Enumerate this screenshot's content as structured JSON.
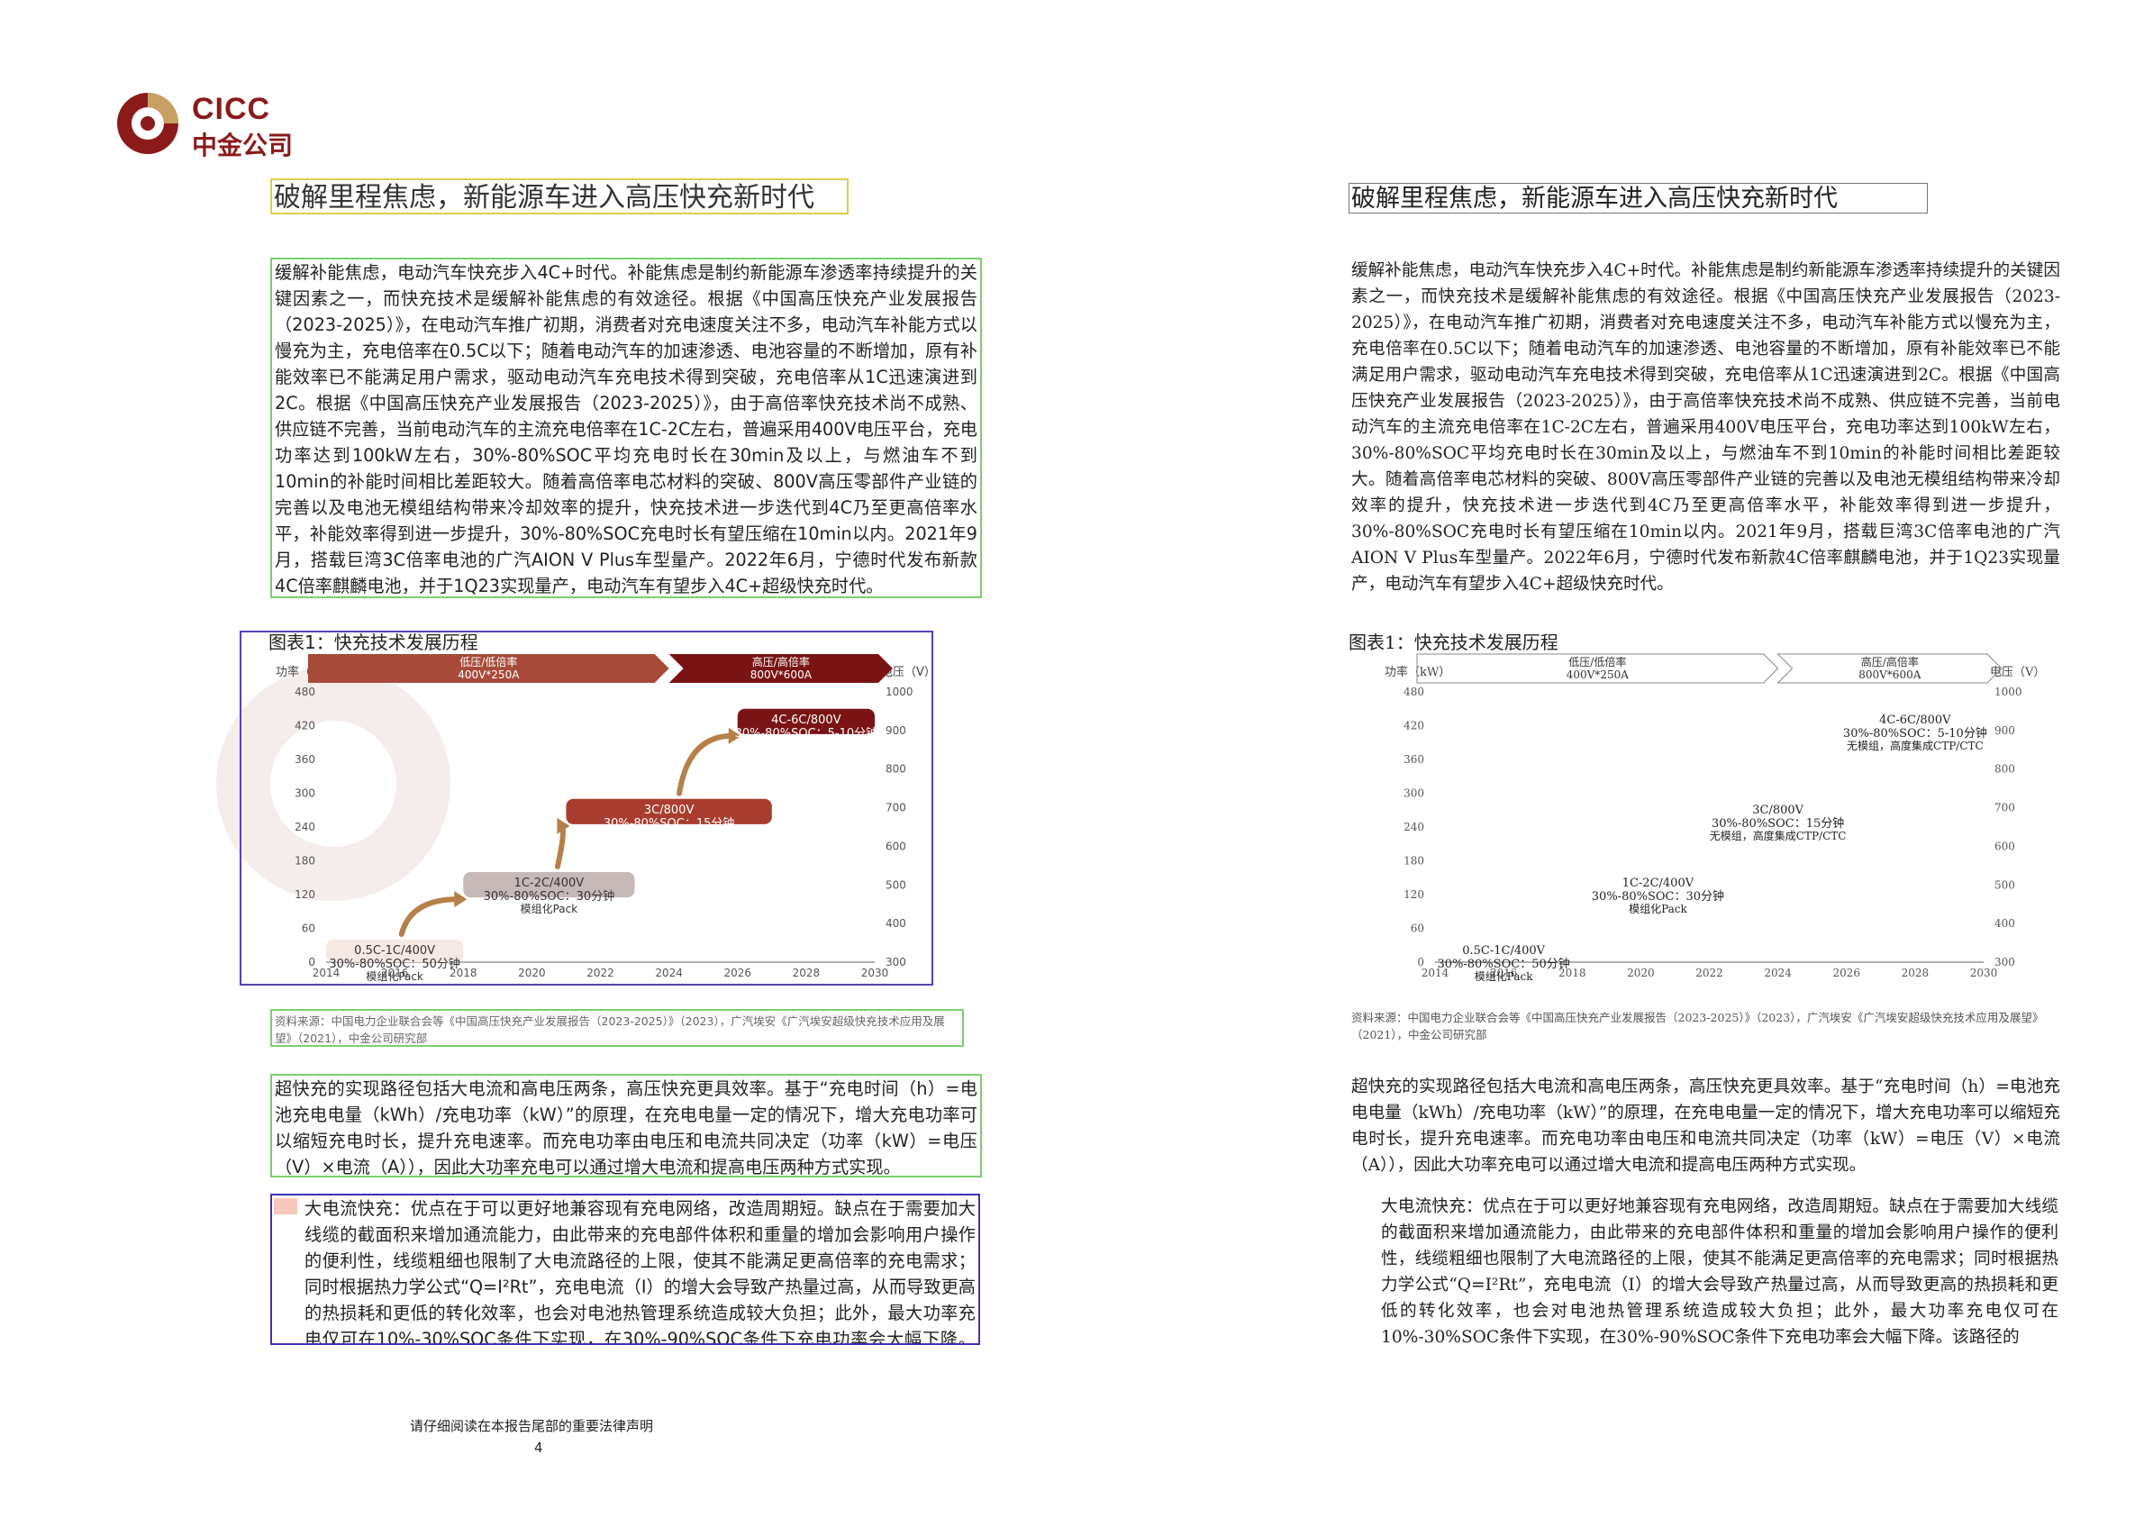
{
  "brand": {
    "name_en": "CICC",
    "name_cn": "中金公司",
    "color": "#8b1a1a"
  },
  "title": "破解里程焦虑，新能源车进入高压快充新时代",
  "paragraph1": "缓解补能焦虑，电动汽车快充步入4C+时代。补能焦虑是制约新能源车渗透率持续提升的关键因素之一，而快充技术是缓解补能焦虑的有效途径。根据《中国高压快充产业发展报告（2023-2025）》，在电动汽车推广初期，消费者对充电速度关注不多，电动汽车补能方式以慢充为主，充电倍率在0.5C以下；随着电动汽车的加速渗透、电池容量的不断增加，原有补能效率已不能满足用户需求，驱动电动汽车充电技术得到突破，充电倍率从1C迅速演进到2C。根据《中国高压快充产业发展报告（2023-2025）》，由于高倍率快充技术尚不成熟、供应链不完善，当前电动汽车的主流充电倍率在1C-2C左右，普遍采用400V电压平台，充电功率达到100kW左右，30%-80%SOC平均充电时长在30min及以上，与燃油车不到10min的补能时间相比差距较大。随着高倍率电芯材料的突破、800V高压零部件产业链的完善以及电池无模组结构带来冷却效率的提升，快充技术进一步迭代到4C乃至更高倍率水平，补能效率得到进一步提升，30%-80%SOC充电时长有望压缩在10min以内。2021年9月，搭载巨湾3C倍率电池的广汽AION V Plus车型量产。2022年6月，宁德时代发布新款4C倍率麒麟电池，并于1Q23实现量产，电动汽车有望步入4C+超级快充时代。",
  "figure": {
    "label": "图表1：快充技术发展历程",
    "source": "资料来源：中国电力企业联合会等《中国高压快充产业发展报告（2023-2025）》（2023），广汽埃安《广汽埃安超级快充技术应用及展望》（2021），中金公司研究部"
  },
  "chart_data": {
    "type": "timeline",
    "title": "",
    "ylabel_left": "功率（kW）",
    "ylabel_right": "电压（V）",
    "x_ticks": [
      "2014",
      "2016",
      "2018",
      "2020",
      "2022",
      "2024",
      "2026",
      "2028",
      "2030"
    ],
    "xlim": [
      2014,
      2030
    ],
    "y_left_ticks": [
      "480",
      "420",
      "360",
      "300",
      "240",
      "180",
      "120",
      "60",
      "0"
    ],
    "y_left_lim": [
      0,
      480
    ],
    "y_right_ticks": [
      "1000",
      "900",
      "800",
      "700",
      "600",
      "500",
      "400",
      "300"
    ],
    "y_right_lim": [
      300,
      1000
    ],
    "bands": [
      {
        "line1": "低压/低倍率",
        "line2": "400V*250A",
        "color": "#a84a3a"
      },
      {
        "line1": "高压/高倍率",
        "line2": "800V*600A",
        "color": "#7a1414"
      }
    ],
    "stages": [
      {
        "rate": "0.5C-1C/400V",
        "time": "30%-80%SOC：50分钟",
        "tech": "模组化Pack",
        "x_start": 2014,
        "x_end": 2018,
        "y_top": 40,
        "y_bottom": 0,
        "color": "#f6e9e4",
        "text_color": "#333333"
      },
      {
        "rate": "1C-2C/400V",
        "time": "30%-80%SOC：30分钟",
        "tech": "模组化Pack",
        "x_start": 2018,
        "x_end": 2023,
        "y_top": 160,
        "y_bottom": 115,
        "color": "#c7b9b7",
        "text_color": "#333333"
      },
      {
        "rate": "3C/800V",
        "time": "30%-80%SOC：15分钟",
        "tech": "无模组，高度集成CTP/CTC",
        "x_start": 2021,
        "x_end": 2027,
        "y_top": 290,
        "y_bottom": 245,
        "color": "#a83d2f",
        "text_color": "#ffffff"
      },
      {
        "rate": "4C-6C/800V",
        "time": "30%-80%SOC：5-10分钟",
        "tech": "无模组，高度集成CTP/CTC",
        "x_start": 2026,
        "x_end": 2030,
        "y_top": 450,
        "y_bottom": 405,
        "color": "#7a1414",
        "text_color": "#ffffff"
      }
    ]
  },
  "paragraph2": "超快充的实现路径包括大电流和高电压两条，高压快充更具效率。基于“充电时间（h）=电池充电电量（kWh）/充电功率（kW）”的原理，在充电电量一定的情况下，增大充电功率可以缩短充电时长，提升充电速率。而充电功率由电压和电流共同决定（功率（kW）=电压（V）×电流（A）），因此大功率充电可以通过增大电流和提高电压两种方式实现。",
  "paragraph3": "大电流快充：优点在于可以更好地兼容现有充电网络，改造周期短。缺点在于需要加大线缆的截面积来增加通流能力，由此带来的充电部件体积和重量的增加会影响用户操作的便利性，线缆粗细也限制了大电流路径的上限，使其不能满足更高倍率的充电需求；同时根据热力学公式“Q=I²Rt”，充电电流（I）的增大会导致产热量过高，从而导致更高的热损耗和更低的转化效率，也会对电池热管理系统造成较大负担；此外，最大功率充电仅可在10%-30%SOC条件下实现，在30%-90%SOC条件下充电功率会大幅下降。该路径的",
  "footer": {
    "disclaimer": "请仔细阅读在本报告尾部的重要法律声明",
    "page": "4"
  }
}
